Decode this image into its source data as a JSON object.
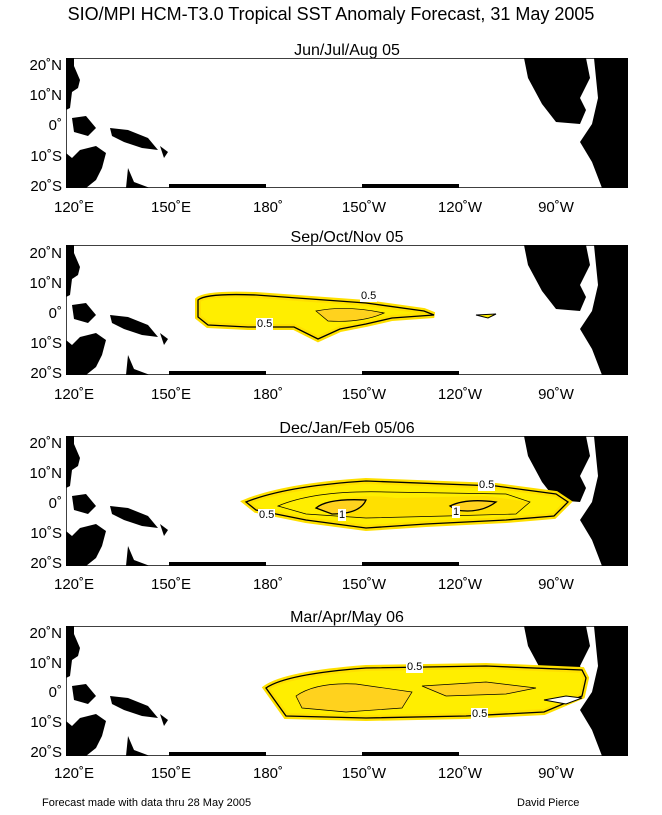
{
  "title": "SIO/MPI HCM-T3.0 Tropical SST Anomaly Forecast, 31 May 2005",
  "lat_labels": [
    "20˚N",
    "10˚N",
    "0˚",
    "10˚S",
    "20˚S"
  ],
  "lon_labels": [
    "120˚E",
    "150˚E",
    "180˚",
    "150˚W",
    "120˚W",
    "90˚W"
  ],
  "panels": [
    {
      "title": "Jun/Jul/Aug 05",
      "contours": []
    },
    {
      "title": "Sep/Oct/Nov 05",
      "contours": [
        "0.5",
        "0.5"
      ]
    },
    {
      "title": "Dec/Jan/Feb 05/06",
      "contours": [
        "0.5",
        "0.5",
        "1",
        "1"
      ]
    },
    {
      "title": "Mar/Apr/May 06",
      "contours": [
        "0.5",
        "0.5"
      ]
    }
  ],
  "colors": {
    "anomaly_fill": "#ffee00",
    "anomaly_core": "#ffd21e",
    "land": "#000000"
  },
  "footer": {
    "left": "Forecast made with data thru 28 May 2005",
    "right": "David Pierce"
  }
}
